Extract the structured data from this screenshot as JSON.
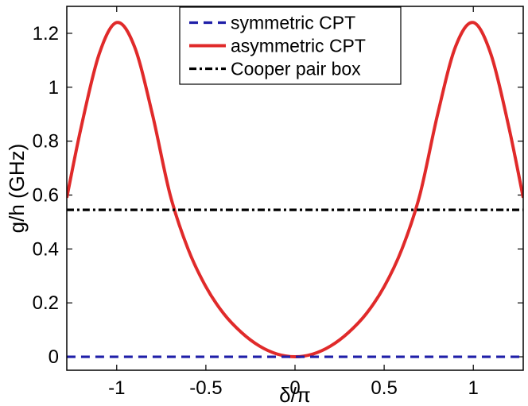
{
  "chart_data": {
    "type": "line",
    "xlabel": "δ/π",
    "ylabel": "g/h (GHz)",
    "xlim": [
      -1.28,
      1.28
    ],
    "ylim": [
      -0.05,
      1.3
    ],
    "x_ticks": [
      -1,
      -0.5,
      0,
      0.5,
      1
    ],
    "x_tick_labels": [
      "-1",
      "-0.5",
      "0",
      "0.5",
      "1"
    ],
    "y_ticks": [
      0,
      0.2,
      0.4,
      0.6,
      0.8,
      1,
      1.2
    ],
    "y_tick_labels": [
      "0",
      "0.2",
      "0.4",
      "0.6",
      "0.8",
      "1",
      "1.2"
    ],
    "grid": false,
    "legend_position": "top-center",
    "series": [
      {
        "name": "symmetric CPT",
        "color": "#1f1fa8",
        "style": "dashed",
        "x": [
          -1.28,
          -1,
          -0.5,
          0,
          0.5,
          1,
          1.28
        ],
        "y": [
          0,
          0,
          0,
          0,
          0,
          0,
          0
        ]
      },
      {
        "name": "asymmetric CPT",
        "color": "#e02a2a",
        "style": "solid",
        "x": [
          -1.28,
          -1.2,
          -1.1,
          -1.0,
          -0.9,
          -0.8,
          -0.7,
          -0.6,
          -0.5,
          -0.4,
          -0.3,
          -0.2,
          -0.1,
          0,
          0.1,
          0.2,
          0.3,
          0.4,
          0.5,
          0.6,
          0.7,
          0.8,
          0.9,
          1.0,
          1.1,
          1.2,
          1.28
        ],
        "y": [
          0.59,
          0.85,
          1.12,
          1.24,
          1.15,
          0.9,
          0.6,
          0.4,
          0.26,
          0.16,
          0.09,
          0.04,
          0.01,
          0,
          0.01,
          0.04,
          0.09,
          0.16,
          0.26,
          0.4,
          0.6,
          0.9,
          1.15,
          1.24,
          1.12,
          0.85,
          0.59
        ]
      },
      {
        "name": "Cooper pair box",
        "color": "#000000",
        "style": "dashdot",
        "x": [
          -1.28,
          1.28
        ],
        "y": [
          0.545,
          0.545
        ]
      }
    ]
  }
}
